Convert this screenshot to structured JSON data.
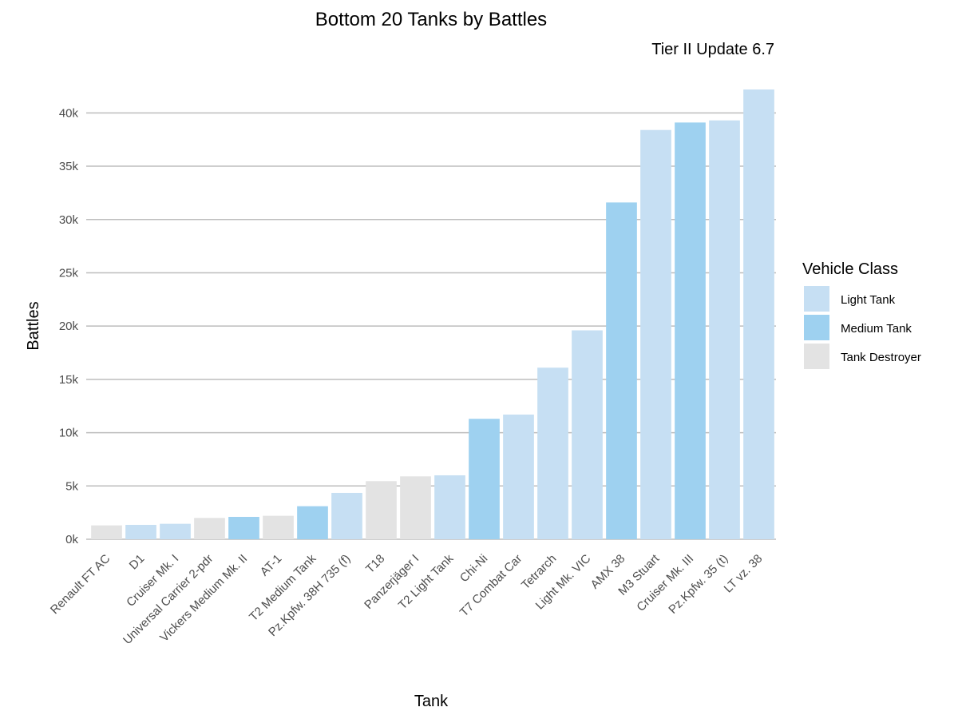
{
  "chart_data": {
    "type": "bar",
    "title": "Bottom 20 Tanks by Battles",
    "subtitle": "Tier II Update 6.7",
    "xlabel": "Tank",
    "ylabel": "Battles",
    "ylim": [
      0,
      42000
    ],
    "yticks": [
      0,
      5000,
      10000,
      15000,
      20000,
      25000,
      30000,
      35000,
      40000
    ],
    "ytick_labels": [
      "0k",
      "5k",
      "10k",
      "15k",
      "20k",
      "25k",
      "30k",
      "35k",
      "40k"
    ],
    "grid": "horizontal",
    "legend": {
      "title": "Vehicle Class",
      "position": "right",
      "entries": [
        {
          "name": "Light Tank",
          "color": "#c6dff3"
        },
        {
          "name": "Medium Tank",
          "color": "#9ed1f0"
        },
        {
          "name": "Tank Destroyer",
          "color": "#e3e3e3"
        }
      ]
    },
    "bars": [
      {
        "category": "Renault FT AC",
        "value": 1300,
        "class": "Tank Destroyer"
      },
      {
        "category": "D1",
        "value": 1350,
        "class": "Light Tank"
      },
      {
        "category": "Cruiser Mk. I",
        "value": 1450,
        "class": "Light Tank"
      },
      {
        "category": "Universal Carrier 2-pdr",
        "value": 2000,
        "class": "Tank Destroyer"
      },
      {
        "category": "Vickers Medium Mk. II",
        "value": 2100,
        "class": "Medium Tank"
      },
      {
        "category": "AT-1",
        "value": 2200,
        "class": "Tank Destroyer"
      },
      {
        "category": "T2 Medium Tank",
        "value": 3100,
        "class": "Medium Tank"
      },
      {
        "category": "Pz.Kpfw. 38H 735 (f)",
        "value": 4350,
        "class": "Light Tank"
      },
      {
        "category": "T18",
        "value": 5450,
        "class": "Tank Destroyer"
      },
      {
        "category": "Panzerjäger I",
        "value": 5900,
        "class": "Tank Destroyer"
      },
      {
        "category": "T2 Light Tank",
        "value": 6000,
        "class": "Light Tank"
      },
      {
        "category": "Chi-Ni",
        "value": 11300,
        "class": "Medium Tank"
      },
      {
        "category": "T7 Combat Car",
        "value": 11700,
        "class": "Light Tank"
      },
      {
        "category": "Tetrarch",
        "value": 16100,
        "class": "Light Tank"
      },
      {
        "category": "Light Mk. VIC",
        "value": 19600,
        "class": "Light Tank"
      },
      {
        "category": "AMX 38",
        "value": 31600,
        "class": "Medium Tank"
      },
      {
        "category": "M3 Stuart",
        "value": 38400,
        "class": "Light Tank"
      },
      {
        "category": "Cruiser Mk. III",
        "value": 39100,
        "class": "Medium Tank"
      },
      {
        "category": "Pz.Kpfw. 35 (t)",
        "value": 39300,
        "class": "Light Tank"
      },
      {
        "category": "LT vz. 38",
        "value": 42200,
        "class": "Light Tank"
      }
    ]
  }
}
